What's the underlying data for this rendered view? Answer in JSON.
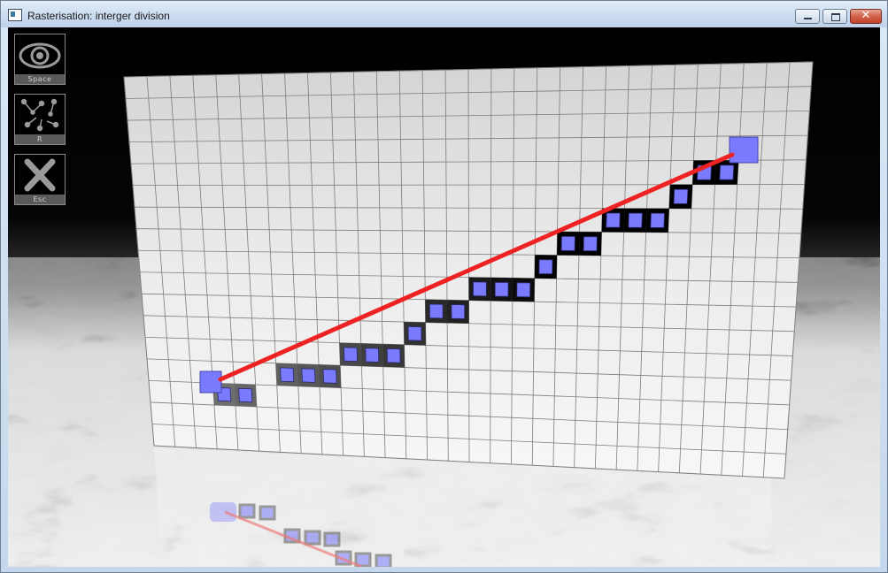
{
  "window": {
    "title": "Rasterisation: interger division",
    "controls": {
      "minimize_icon": "minimize-icon",
      "maximize_icon": "maximize-icon",
      "close_glyph": "✕"
    }
  },
  "hud": {
    "buttons": [
      {
        "icon": "eye-icon",
        "key": "Space"
      },
      {
        "icon": "scatter-points-icon",
        "key": "R"
      },
      {
        "icon": "close-x-icon",
        "key": "Esc"
      }
    ]
  },
  "scene": {
    "line_color": "#ee2222",
    "pixel_color": "#7a7aff",
    "floor": "marble",
    "grid_columns": 30,
    "grid_rows": 17
  }
}
